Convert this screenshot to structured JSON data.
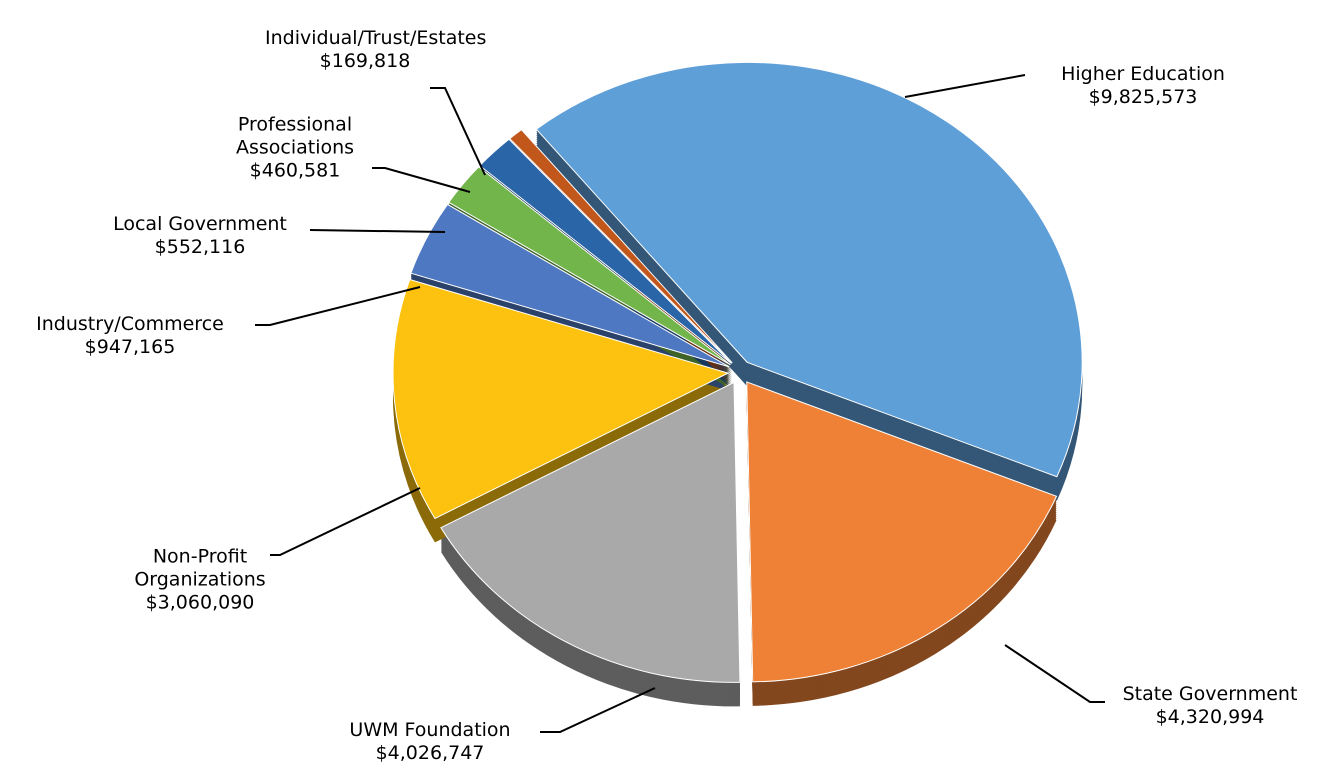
{
  "chart_data": {
    "type": "pie",
    "categories": [
      "Higher Education",
      "State Government",
      "UWM Foundation",
      "Non-Profit Organizations",
      "Industry/Commerce",
      "Local Government",
      "Professional Associations",
      "Individual/Trust/Estates"
    ],
    "values": [
      9825573,
      4320994,
      4026747,
      3060090,
      947165,
      552116,
      460581,
      169818
    ],
    "value_labels": [
      "$9,825,573",
      "$4,320,994",
      "$4,026,747",
      "$3,060,090",
      "$947,165",
      "$552,116",
      "$460,581",
      "$169,818"
    ],
    "colors": [
      "#5f9fd8",
      "#ef8136",
      "#a9a9a9",
      "#fdc20f",
      "#4f78c3",
      "#72b54a",
      "#2a65a8",
      "#c2571c"
    ]
  }
}
